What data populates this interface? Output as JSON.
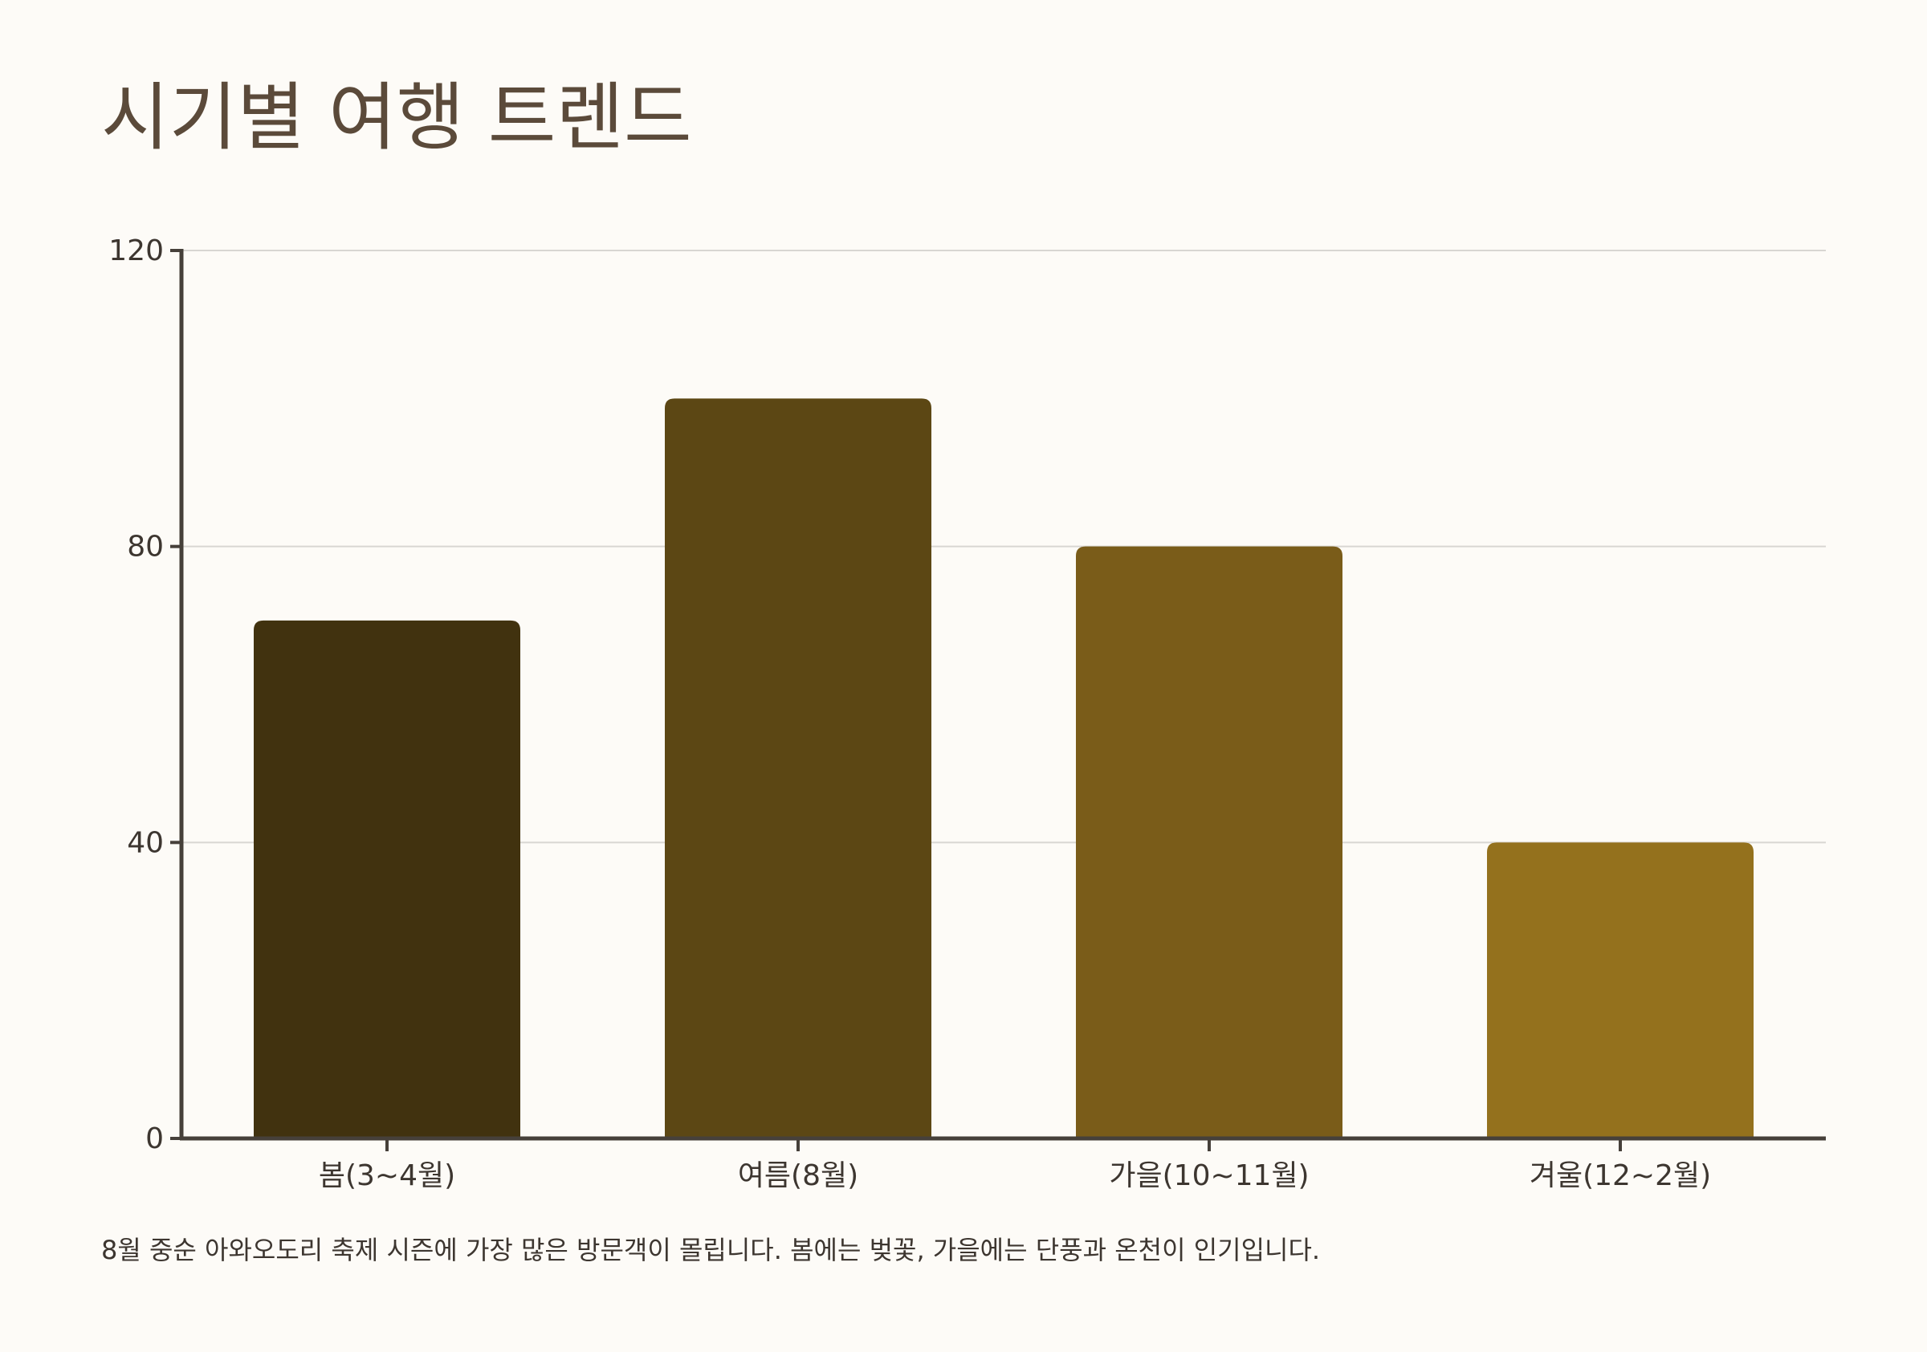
{
  "title": "시기별 여행 트렌드",
  "caption": "8월 중순 아와오도리 축제 시즌에 가장 많은 방문객이 몰립니다. 봄에는 벚꽃, 가을에는 단풍과 온천이 인기입니다.",
  "chart_data": {
    "type": "bar",
    "categories": [
      "봄(3~4월)",
      "여름(8월)",
      "가을(10~11월)",
      "겨울(12~2월)"
    ],
    "values": [
      70,
      100,
      80,
      40
    ],
    "colors": [
      "#41320f",
      "#5c4714",
      "#7a5c19",
      "#94711d"
    ],
    "title": "시기별 여행 트렌드",
    "xlabel": "",
    "ylabel": "",
    "ylim": [
      0,
      120
    ],
    "yticks": [
      0,
      40,
      80,
      120
    ],
    "grid": true,
    "axis_color": "#46403a",
    "grid_color": "#d8d6d2"
  }
}
